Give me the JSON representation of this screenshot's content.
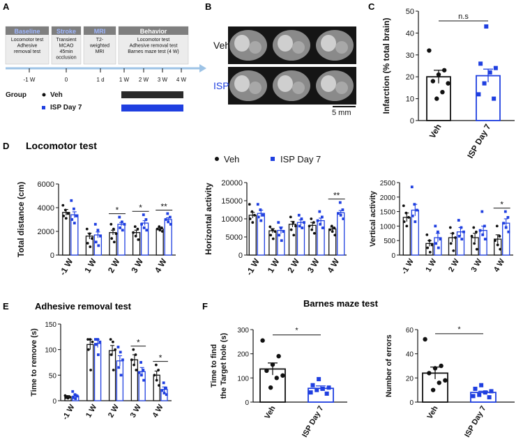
{
  "colors": {
    "veh": "#111111",
    "isp": "#1f3fe0",
    "timeline": "#9dc3e6",
    "box_header": "#7f7f7f",
    "header_text_blue": "#3b4fd1",
    "box_fill": "#ececec"
  },
  "panels": {
    "A": {
      "label": "A",
      "boxes": [
        {
          "title": "Baseline",
          "lines": [
            "Locomotor test",
            "Adhesive",
            "removal test"
          ]
        },
        {
          "title": "Stroke",
          "lines": [
            "Transient",
            "MCAO",
            "45min",
            "occlusion"
          ]
        },
        {
          "title": "MRI",
          "lines": [
            "T2-",
            "weighted",
            "MRI"
          ]
        },
        {
          "title": "Behavior",
          "lines": [
            "Locomotor test",
            "Adhesive removal test",
            "Barnes maze test (4 W)"
          ]
        }
      ],
      "timeline_ticks": [
        "-1 W",
        "0",
        "1 d",
        "1 W",
        "2 W",
        "3 W",
        "4 W"
      ],
      "group_label": "Group",
      "legend": [
        "Veh",
        "ISP Day 7"
      ]
    },
    "B": {
      "label": "B",
      "rows": [
        "Veh",
        "ISP"
      ],
      "scale_bar": "5 mm"
    },
    "C": {
      "label": "C"
    },
    "D": {
      "label": "D",
      "title": "Locomotor test",
      "legend": [
        "Veh",
        "ISP Day 7"
      ]
    },
    "E": {
      "label": "E",
      "title": "Adhesive removal test"
    },
    "F": {
      "label": "F",
      "title": "Barnes maze test"
    }
  },
  "chart_data": [
    {
      "id": "C",
      "type": "bar",
      "ylabel": "Infarction (% total brain)",
      "ylim": [
        0,
        50
      ],
      "yticks": [
        0,
        10,
        20,
        30,
        40,
        50
      ],
      "categories": [
        "Veh",
        "ISP Day 7"
      ],
      "series_colors": [
        "veh",
        "isp"
      ],
      "values": [
        20,
        20.5
      ],
      "errors": [
        3,
        3
      ],
      "points": [
        [
          32,
          23,
          21,
          18,
          17,
          13,
          10
        ],
        [
          43,
          26,
          24,
          22,
          17,
          12,
          10
        ]
      ],
      "significance": [
        {
          "from": 0,
          "to": 1,
          "label": "n.s"
        }
      ]
    },
    {
      "id": "D1",
      "type": "bar",
      "ylabel": "Total distance (cm)",
      "ylim": [
        0,
        6000
      ],
      "yticks": [
        0,
        2000,
        4000,
        6000
      ],
      "categories": [
        "-1 W",
        "1 W",
        "2 W",
        "3 W",
        "4 W"
      ],
      "series": [
        {
          "name": "Veh",
          "values": [
            3600,
            1600,
            1900,
            1900,
            2200
          ],
          "errors": [
            250,
            250,
            200,
            200,
            100
          ],
          "points": [
            [
              4200,
              3800,
              3500,
              3300,
              3100
            ],
            [
              2200,
              1800,
              1400,
              1000,
              700
            ],
            [
              2600,
              2200,
              1800,
              1400,
              1100
            ],
            [
              2400,
              2200,
              1900,
              1600,
              1300
            ],
            [
              2400,
              2300,
              2200,
              2100,
              2000
            ]
          ]
        },
        {
          "name": "ISP Day 7",
          "values": [
            3400,
            1700,
            2600,
            2700,
            3000
          ],
          "errors": [
            250,
            250,
            150,
            200,
            150
          ],
          "points": [
            [
              4600,
              3900,
              3300,
              3000,
              2700
            ],
            [
              2600,
              2100,
              1600,
              1100,
              800
            ],
            [
              3200,
              2800,
              2600,
              2300,
              2100
            ],
            [
              3400,
              3000,
              2600,
              2300,
              2100
            ],
            [
              3500,
              3200,
              3000,
              2800,
              2600
            ]
          ]
        }
      ],
      "significance": [
        {
          "category": 2,
          "label": "*"
        },
        {
          "category": 3,
          "label": "*"
        },
        {
          "category": 4,
          "label": "**"
        }
      ]
    },
    {
      "id": "D2",
      "type": "bar",
      "ylabel": "Horizontal activity",
      "ylim": [
        0,
        20000
      ],
      "yticks": [
        0,
        5000,
        10000,
        15000,
        20000
      ],
      "categories": [
        "-1 W",
        "1 W",
        "2 W",
        "3 W",
        "4 W"
      ],
      "series": [
        {
          "name": "Veh",
          "values": [
            11000,
            6700,
            8500,
            8200,
            7200
          ],
          "errors": [
            800,
            600,
            800,
            800,
            500
          ],
          "points": [
            [
              14000,
              12000,
              11000,
              10000,
              9000
            ],
            [
              7800,
              7000,
              6500,
              5500,
              4500
            ],
            [
              10500,
              9000,
              8000,
              7000,
              5500
            ],
            [
              10000,
              9000,
              8000,
              7000,
              6000
            ],
            [
              8000,
              7500,
              7000,
              6500,
              5500
            ]
          ]
        },
        {
          "name": "ISP Day 7",
          "values": [
            11500,
            6800,
            9000,
            9500,
            11700
          ],
          "errors": [
            900,
            900,
            700,
            700,
            600
          ],
          "points": [
            [
              14000,
              12500,
              11000,
              10500,
              9500
            ],
            [
              9000,
              7500,
              6500,
              5500,
              4000
            ],
            [
              11000,
              10000,
              9000,
              8000,
              7500
            ],
            [
              12000,
              10500,
              9500,
              8500,
              7500
            ],
            [
              14500,
              12500,
              11500,
              11000,
              10000
            ]
          ]
        }
      ],
      "significance": [
        {
          "category": 4,
          "label": "**"
        }
      ]
    },
    {
      "id": "D3",
      "type": "bar",
      "ylabel": "Vertical activity",
      "ylim": [
        0,
        2500
      ],
      "yticks": [
        0,
        500,
        1000,
        1500,
        2000,
        2500
      ],
      "categories": [
        "-1 W",
        "1 W",
        "2 W",
        "3 W",
        "4 W"
      ],
      "series": [
        {
          "name": "Veh",
          "values": [
            1300,
            400,
            600,
            600,
            550
          ],
          "errors": [
            150,
            100,
            150,
            150,
            150
          ],
          "points": [
            [
              1700,
              1450,
              1300,
              1150,
              1000
            ],
            [
              700,
              500,
              350,
              250,
              100
            ],
            [
              950,
              750,
              600,
              400,
              150
            ],
            [
              950,
              800,
              650,
              400,
              200
            ],
            [
              1000,
              650,
              500,
              350,
              200
            ]
          ]
        },
        {
          "name": "ISP Day 7",
          "values": [
            1550,
            600,
            800,
            850,
            1100
          ],
          "errors": [
            200,
            150,
            150,
            150,
            150
          ],
          "points": [
            [
              2350,
              1750,
              1550,
              1350,
              1150
            ],
            [
              1000,
              800,
              550,
              400,
              250
            ],
            [
              1200,
              950,
              800,
              650,
              550
            ],
            [
              1500,
              1000,
              850,
              700,
              550
            ],
            [
              1500,
              1300,
              1100,
              950,
              800
            ]
          ]
        }
      ],
      "significance": [
        {
          "category": 4,
          "label": "*"
        }
      ]
    },
    {
      "id": "E",
      "type": "bar",
      "ylabel": "Time to remove (s)",
      "ylim": [
        0,
        150
      ],
      "yticks": [
        0,
        50,
        100,
        150
      ],
      "categories": [
        "-1 W",
        "1 W",
        "2 W",
        "3 W",
        "4 W"
      ],
      "series": [
        {
          "name": "Veh",
          "values": [
            8,
            110,
            98,
            80,
            50
          ],
          "errors": [
            2,
            10,
            10,
            10,
            8
          ],
          "points": [
            [
              10,
              8,
              7,
              6,
              5
            ],
            [
              120,
              120,
              115,
              100,
              60
            ],
            [
              120,
              115,
              100,
              90,
              60
            ],
            [
              100,
              90,
              80,
              70,
              60
            ],
            [
              70,
              60,
              50,
              40,
              30
            ]
          ]
        },
        {
          "name": "ISP Day 7",
          "values": [
            9,
            112,
            78,
            57,
            22
          ],
          "errors": [
            3,
            8,
            10,
            8,
            5
          ],
          "points": [
            [
              18,
              12,
              9,
              6,
              4
            ],
            [
              120,
              120,
              115,
              110,
              90
            ],
            [
              105,
              95,
              80,
              65,
              50
            ],
            [
              75,
              60,
              55,
              50,
              40
            ],
            [
              35,
              25,
              20,
              15,
              12
            ]
          ]
        }
      ],
      "significance": [
        {
          "category": 3,
          "label": "*"
        },
        {
          "category": 4,
          "label": "*"
        }
      ]
    },
    {
      "id": "F1",
      "type": "bar",
      "ylabel": "Time to find the Target hole (s)",
      "ylim": [
        0,
        300
      ],
      "yticks": [
        0,
        100,
        200,
        300
      ],
      "categories": [
        "Veh",
        "ISP Day 7"
      ],
      "series_colors": [
        "veh",
        "isp"
      ],
      "values": [
        137,
        57
      ],
      "errors": [
        25,
        10
      ],
      "points": [
        [
          255,
          190,
          155,
          130,
          110,
          100,
          60
        ],
        [
          95,
          70,
          60,
          55,
          50,
          40,
          35
        ]
      ],
      "significance": [
        {
          "from": 0,
          "to": 1,
          "label": "*"
        }
      ]
    },
    {
      "id": "F2",
      "type": "bar",
      "ylabel": "Number of errors",
      "ylim": [
        0,
        60
      ],
      "yticks": [
        0,
        20,
        40,
        60
      ],
      "categories": [
        "Veh",
        "ISP Day 7"
      ],
      "series_colors": [
        "veh",
        "isp"
      ],
      "values": [
        24,
        8
      ],
      "errors": [
        5,
        1
      ],
      "points": [
        [
          52,
          30,
          28,
          24,
          18,
          16,
          10
        ],
        [
          14,
          11,
          9,
          8,
          6,
          5,
          4
        ]
      ],
      "significance": [
        {
          "from": 0,
          "to": 1,
          "label": "*"
        }
      ]
    }
  ]
}
